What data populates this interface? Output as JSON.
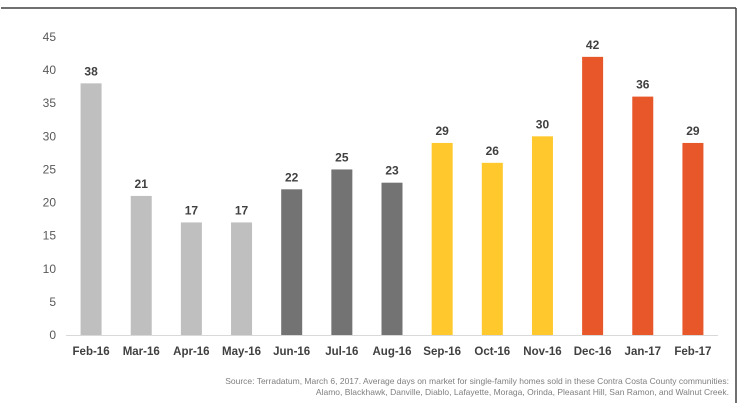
{
  "chart_data": {
    "type": "bar",
    "categories": [
      "Feb-16",
      "Mar-16",
      "Apr-16",
      "May-16",
      "Jun-16",
      "Jul-16",
      "Aug-16",
      "Sep-16",
      "Oct-16",
      "Nov-16",
      "Dec-16",
      "Jan-17",
      "Feb-17"
    ],
    "values": [
      38,
      21,
      17,
      17,
      22,
      25,
      23,
      29,
      26,
      30,
      42,
      36,
      29
    ],
    "colors": [
      "#bfbfbf",
      "#bfbfbf",
      "#bfbfbf",
      "#bfbfbf",
      "#737373",
      "#737373",
      "#737373",
      "#ffc82c",
      "#ffc82c",
      "#ffc82c",
      "#e8572a",
      "#e8572a",
      "#e8572a"
    ],
    "ylim": [
      0,
      45
    ],
    "yticks": [
      0,
      5,
      10,
      15,
      20,
      25,
      30,
      35,
      40,
      45
    ],
    "grid": false,
    "title": "",
    "xlabel": "",
    "ylabel": ""
  },
  "source": {
    "line1": "Source: Terradatum, March 6, 2017. Average days on market for single-family homes sold in these Contra Costa County communities:",
    "line2": "Alamo, Blackhawk, Danville, Diablo, Lafayette, Moraga, Orinda, Pleasant Hill, San Ramon, and Walnut Creek."
  }
}
